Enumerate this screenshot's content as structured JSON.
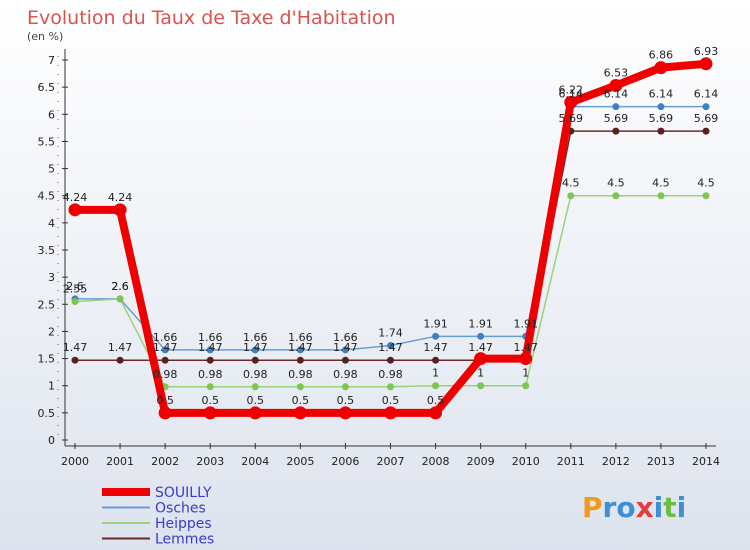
{
  "title": "Evolution du Taux de Taxe d'Habitation",
  "subtitle": "(en %)",
  "brand": {
    "text": "Proxiti"
  },
  "colors": {
    "background_top": "#ffffff",
    "background_bottom": "#dde3ee",
    "title": "#d9534f",
    "legend_text": "#3a3ad0"
  },
  "chart_data": {
    "type": "line",
    "x": [
      2000,
      2001,
      2002,
      2003,
      2004,
      2005,
      2006,
      2007,
      2008,
      2009,
      2010,
      2011,
      2012,
      2013,
      2014
    ],
    "ylim": [
      0,
      7
    ],
    "yticks": [
      "0",
      "0.5",
      "1",
      "1.5",
      "2",
      "2.5",
      "3",
      "3.5",
      "4",
      "4.5",
      "5",
      "5.5",
      "6",
      "6.5",
      "7"
    ],
    "legend_position": "bottom-left",
    "series": [
      {
        "name": "SOUILLY",
        "color": "#ee0000",
        "line_width": 8,
        "marker_radius": 6.5,
        "values": [
          4.24,
          4.24,
          0.5,
          0.5,
          0.5,
          0.5,
          0.5,
          0.5,
          0.5,
          1.5,
          1.5,
          6.22,
          6.53,
          6.86,
          6.93
        ],
        "labels": [
          "4.24",
          "4.24",
          "0.5",
          "0.5",
          "0.5",
          "0.5",
          "0.5",
          "0.5",
          "0.5",
          "",
          "",
          "6.22",
          "6.53",
          "6.86",
          "6.93"
        ]
      },
      {
        "name": "Osches",
        "color": "#6a9ed0",
        "marker_color": "#3f7fc4",
        "line_width": 1.5,
        "marker_radius": 3.5,
        "values": [
          2.6,
          2.6,
          1.66,
          1.66,
          1.66,
          1.66,
          1.66,
          1.74,
          1.91,
          1.91,
          1.91,
          6.14,
          6.14,
          6.14,
          6.14
        ],
        "labels": [
          "2.6",
          "2.6",
          "1.66",
          "1.66",
          "1.66",
          "1.66",
          "1.66",
          "1.74",
          "1.91",
          "1.91",
          "1.91",
          "6.14",
          "6.14",
          "6.14",
          "6.14"
        ]
      },
      {
        "name": "Heippes",
        "color": "#9ad27a",
        "marker_color": "#7fc64e",
        "line_width": 1.5,
        "marker_radius": 3.5,
        "values": [
          2.55,
          2.6,
          0.98,
          0.98,
          0.98,
          0.98,
          0.98,
          0.98,
          1,
          1,
          1,
          4.5,
          4.5,
          4.5,
          4.5
        ],
        "labels": [
          "2.55",
          "2.6",
          "0.98",
          "0.98",
          "0.98",
          "0.98",
          "0.98",
          "0.98",
          "1",
          "1",
          "1",
          "4.5",
          "4.5",
          "4.5",
          "4.5"
        ]
      },
      {
        "name": "Lemmes",
        "color": "#6b2a2a",
        "marker_color": "#5a1f1f",
        "line_width": 1.5,
        "marker_radius": 3.5,
        "values": [
          1.47,
          1.47,
          1.47,
          1.47,
          1.47,
          1.47,
          1.47,
          1.47,
          1.47,
          1.47,
          1.47,
          5.69,
          5.69,
          5.69,
          5.69
        ],
        "labels": [
          "1.47",
          "1.47",
          "1.47",
          "1.47",
          "1.47",
          "1.47",
          "1.47",
          "1.47",
          "1.47",
          "1.47",
          "1.47",
          "5.69",
          "5.69",
          "5.69",
          "5.69"
        ]
      }
    ]
  }
}
